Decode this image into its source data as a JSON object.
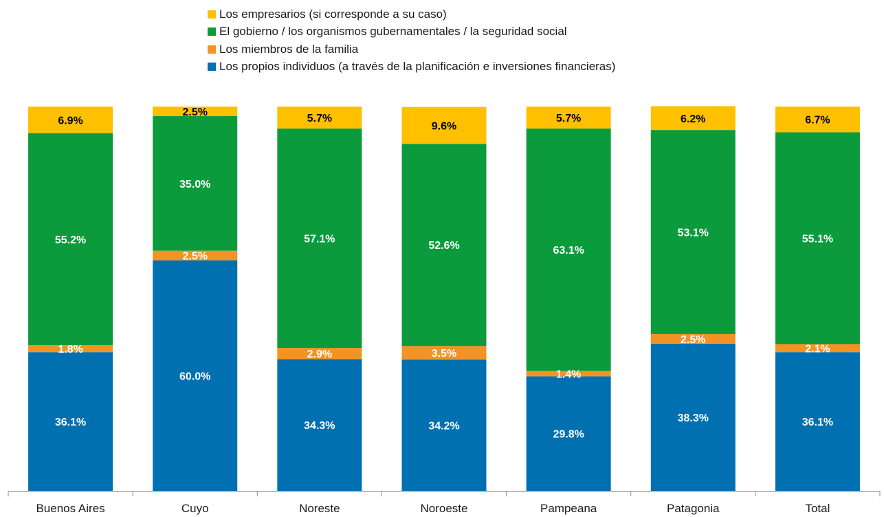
{
  "chart_data": {
    "type": "bar",
    "stacked": true,
    "categories": [
      "Buenos Aires",
      "Cuyo",
      "Noreste",
      "Noroeste",
      "Pampeana",
      "Patagonia",
      "Total"
    ],
    "series": [
      {
        "name": "Los propios individuos (a través de la planificación e inversiones financieras)",
        "color": "#0070b0",
        "values": [
          36.1,
          60.0,
          34.3,
          34.2,
          29.8,
          38.3,
          36.1
        ],
        "labels": [
          "36.1%",
          "60.0%",
          "34.3%",
          "34.2%",
          "29.8%",
          "38.3%",
          "36.1%"
        ]
      },
      {
        "name": "Los miembros de la familia",
        "color": "#f39324",
        "values": [
          1.8,
          2.5,
          2.9,
          3.5,
          1.4,
          2.5,
          2.1
        ],
        "labels": [
          "1.8%",
          "2.5%",
          "2.9%",
          "3.5%",
          "1.4%",
          "2.5%",
          "2.1%"
        ]
      },
      {
        "name": "El gobierno / los organismos gubernamentales / la seguridad social",
        "color": "#0b9b3c",
        "values": [
          55.2,
          35.0,
          57.1,
          52.6,
          63.1,
          53.1,
          55.1
        ],
        "labels": [
          "55.2%",
          "35.0%",
          "57.1%",
          "52.6%",
          "63.1%",
          "53.1%",
          "55.1%"
        ]
      },
      {
        "name": "Los empresarios (si corresponde a su caso)",
        "color": "#ffc000",
        "values": [
          6.9,
          2.5,
          5.7,
          9.6,
          5.7,
          6.2,
          6.7
        ],
        "labels": [
          "6.9%",
          "2.5%",
          "5.7%",
          "9.6%",
          "5.7%",
          "6.2%",
          "6.7%"
        ]
      }
    ],
    "legend_order": [
      3,
      2,
      1,
      0
    ],
    "legend_position": "top",
    "ylim": [
      0,
      100
    ],
    "grid": false
  }
}
